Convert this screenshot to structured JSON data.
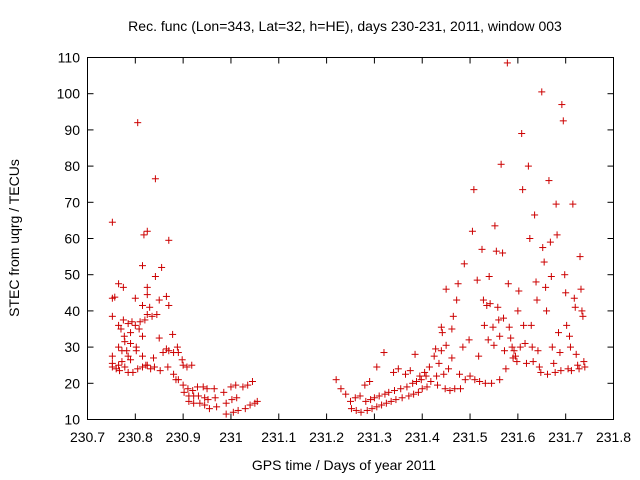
{
  "chart_data": {
    "type": "scatter",
    "title": "Rec. func (Lon=343, Lat=32, h=HE), days 230-231, 2011, window 003",
    "xlabel": "GPS time / Days of year 2011",
    "ylabel": "STEC from uqrg / TECUs",
    "xlim": [
      230.7,
      231.8
    ],
    "ylim": [
      10,
      110
    ],
    "xticks": [
      230.7,
      230.8,
      230.9,
      231.0,
      231.1,
      231.2,
      231.3,
      231.4,
      231.5,
      231.6,
      231.7,
      231.8
    ],
    "xtick_labels": [
      "230.7",
      "230.8",
      "230.9",
      "231",
      "231.1",
      "231.2",
      "231.3",
      "231.4",
      "231.5",
      "231.6",
      "231.7",
      "231.8"
    ],
    "yticks": [
      10,
      20,
      30,
      40,
      50,
      60,
      70,
      80,
      90,
      100,
      110
    ],
    "ytick_labels": [
      "10",
      "20",
      "30",
      "40",
      "50",
      "60",
      "70",
      "80",
      "90",
      "100",
      "110"
    ],
    "grid": false,
    "marker": "+",
    "color": "#cc0000",
    "series": [
      {
        "points": [
          [
            230.752,
            64.5
          ],
          [
            230.752,
            43.5
          ],
          [
            230.752,
            38.5
          ],
          [
            230.752,
            27.5
          ],
          [
            230.752,
            25.5
          ],
          [
            230.752,
            24.5
          ],
          [
            230.757,
            43.8
          ],
          [
            230.76,
            24.0
          ],
          [
            230.765,
            47.5
          ],
          [
            230.765,
            36.0
          ],
          [
            230.765,
            30.0
          ],
          [
            230.765,
            25.0
          ],
          [
            230.767,
            23.5
          ],
          [
            230.77,
            35.0
          ],
          [
            230.772,
            29.0
          ],
          [
            230.772,
            26.0
          ],
          [
            230.775,
            46.5
          ],
          [
            230.775,
            37.5
          ],
          [
            230.777,
            33.0
          ],
          [
            230.778,
            31.5
          ],
          [
            230.778,
            24.5
          ],
          [
            230.782,
            29.0
          ],
          [
            230.785,
            36.5
          ],
          [
            230.785,
            27.5
          ],
          [
            230.785,
            23.0
          ],
          [
            230.79,
            34.0
          ],
          [
            230.79,
            31.0
          ],
          [
            230.79,
            26.5
          ],
          [
            230.793,
            37.0
          ],
          [
            230.795,
            23.0
          ],
          [
            230.8,
            43.5
          ],
          [
            230.8,
            36.0
          ],
          [
            230.802,
            30.0
          ],
          [
            230.802,
            29.0
          ],
          [
            230.805,
            24.0
          ],
          [
            230.805,
            92.0
          ],
          [
            230.808,
            35.0
          ],
          [
            230.81,
            37.0
          ],
          [
            230.815,
            52.5
          ],
          [
            230.815,
            41.5
          ],
          [
            230.815,
            33.0
          ],
          [
            230.815,
            27.5
          ],
          [
            230.815,
            24.5
          ],
          [
            230.818,
            61.0
          ],
          [
            230.82,
            37.5
          ],
          [
            230.822,
            25.0
          ],
          [
            230.825,
            62.0
          ],
          [
            230.825,
            46.5
          ],
          [
            230.825,
            44.5
          ],
          [
            230.825,
            39.0
          ],
          [
            230.825,
            25.0
          ],
          [
            230.83,
            41.0
          ],
          [
            230.832,
            24.0
          ],
          [
            230.835,
            38.5
          ],
          [
            230.838,
            27.0
          ],
          [
            230.84,
            24.5
          ],
          [
            230.842,
            76.5
          ],
          [
            230.842,
            49.5
          ],
          [
            230.845,
            39.0
          ],
          [
            230.85,
            43.0
          ],
          [
            230.85,
            32.5
          ],
          [
            230.852,
            23.5
          ],
          [
            230.855,
            52.0
          ],
          [
            230.858,
            28.5
          ],
          [
            230.865,
            44.0
          ],
          [
            230.865,
            29.5
          ],
          [
            230.868,
            24.5
          ],
          [
            230.87,
            59.5
          ],
          [
            230.87,
            41.5
          ],
          [
            230.87,
            29.0
          ],
          [
            230.878,
            33.5
          ],
          [
            230.88,
            28.5
          ],
          [
            230.88,
            22.5
          ],
          [
            230.885,
            21.0
          ],
          [
            230.888,
            30.0
          ],
          [
            230.89,
            28.5
          ],
          [
            230.89,
            21.0
          ],
          [
            230.898,
            26.5
          ],
          [
            230.9,
            25.0
          ],
          [
            230.9,
            19.5
          ],
          [
            230.902,
            17.5
          ],
          [
            230.908,
            24.5
          ],
          [
            230.91,
            18.5
          ],
          [
            230.912,
            16.5
          ],
          [
            230.912,
            15.0
          ],
          [
            230.918,
            25.0
          ],
          [
            230.92,
            18.0
          ],
          [
            230.922,
            16.5
          ],
          [
            230.922,
            14.5
          ],
          [
            230.93,
            19.0
          ],
          [
            230.932,
            16.5
          ],
          [
            230.935,
            14.5
          ],
          [
            230.942,
            19.0
          ],
          [
            230.945,
            16.0
          ],
          [
            230.945,
            14.0
          ],
          [
            230.95,
            18.5
          ],
          [
            230.952,
            15.5
          ],
          [
            230.955,
            13.0
          ],
          [
            230.965,
            18.5
          ],
          [
            230.967,
            16.0
          ],
          [
            230.97,
            13.5
          ],
          [
            230.985,
            17.5
          ],
          [
            230.99,
            14.5
          ],
          [
            230.99,
            11.5
          ],
          [
            231.0,
            19.0
          ],
          [
            231.002,
            15.5
          ],
          [
            231.005,
            12.0
          ],
          [
            231.01,
            19.5
          ],
          [
            231.012,
            16.0
          ],
          [
            231.015,
            12.5
          ],
          [
            231.025,
            19.0
          ],
          [
            231.03,
            13.0
          ],
          [
            231.035,
            19.5
          ],
          [
            231.04,
            14.0
          ],
          [
            231.045,
            20.5
          ],
          [
            231.05,
            14.5
          ],
          [
            231.055,
            15.0
          ],
          [
            231.22,
            21.0
          ],
          [
            231.23,
            18.5
          ],
          [
            231.24,
            17.0
          ],
          [
            231.25,
            15.0
          ],
          [
            231.252,
            13.0
          ],
          [
            231.26,
            16.0
          ],
          [
            231.262,
            12.5
          ],
          [
            231.27,
            16.5
          ],
          [
            231.272,
            12.0
          ],
          [
            231.28,
            19.5
          ],
          [
            231.282,
            15.0
          ],
          [
            231.285,
            12.5
          ],
          [
            231.29,
            20.5
          ],
          [
            231.292,
            15.5
          ],
          [
            231.295,
            13.0
          ],
          [
            231.3,
            16.0
          ],
          [
            231.305,
            13.5
          ],
          [
            231.305,
            24.5
          ],
          [
            231.31,
            16.5
          ],
          [
            231.315,
            14.0
          ],
          [
            231.32,
            28.5
          ],
          [
            231.322,
            17.0
          ],
          [
            231.325,
            14.5
          ],
          [
            231.33,
            17.5
          ],
          [
            231.335,
            15.0
          ],
          [
            231.34,
            23.0
          ],
          [
            231.342,
            18.0
          ],
          [
            231.345,
            15.5
          ],
          [
            231.35,
            24.0
          ],
          [
            231.355,
            18.5
          ],
          [
            231.358,
            16.0
          ],
          [
            231.365,
            22.5
          ],
          [
            231.368,
            19.0
          ],
          [
            231.372,
            16.5
          ],
          [
            231.375,
            23.5
          ],
          [
            231.38,
            20.0
          ],
          [
            231.382,
            17.0
          ],
          [
            231.385,
            28.0
          ],
          [
            231.388,
            20.5
          ],
          [
            231.392,
            17.5
          ],
          [
            231.395,
            22.0
          ],
          [
            231.398,
            21.0
          ],
          [
            231.4,
            18.5
          ],
          [
            231.405,
            23.0
          ],
          [
            231.408,
            22.0
          ],
          [
            231.41,
            19.0
          ],
          [
            231.415,
            24.5
          ],
          [
            231.418,
            20.5
          ],
          [
            231.425,
            27.5
          ],
          [
            231.428,
            29.5
          ],
          [
            231.43,
            22.0
          ],
          [
            231.432,
            19.5
          ],
          [
            231.435,
            25.5
          ],
          [
            231.44,
            29.0
          ],
          [
            231.44,
            35.5
          ],
          [
            231.442,
            34.0
          ],
          [
            231.445,
            22.5
          ],
          [
            231.448,
            18.5
          ],
          [
            231.45,
            46.0
          ],
          [
            231.45,
            30.5
          ],
          [
            231.455,
            24.0
          ],
          [
            231.458,
            18.0
          ],
          [
            231.462,
            35.0
          ],
          [
            231.462,
            27.0
          ],
          [
            231.465,
            38.5
          ],
          [
            231.468,
            18.5
          ],
          [
            231.472,
            43.0
          ],
          [
            231.475,
            47.5
          ],
          [
            231.478,
            22.5
          ],
          [
            231.48,
            18.5
          ],
          [
            231.485,
            30.0
          ],
          [
            231.488,
            53.0
          ],
          [
            231.49,
            21.0
          ],
          [
            231.498,
            32.0
          ],
          [
            231.5,
            22.0
          ],
          [
            231.505,
            62.0
          ],
          [
            231.508,
            73.5
          ],
          [
            231.51,
            21.0
          ],
          [
            231.515,
            48.5
          ],
          [
            231.518,
            27.5
          ],
          [
            231.52,
            20.5
          ],
          [
            231.525,
            57.0
          ],
          [
            231.528,
            43.0
          ],
          [
            231.53,
            36.0
          ],
          [
            231.532,
            20.0
          ],
          [
            231.535,
            41.5
          ],
          [
            231.538,
            32.0
          ],
          [
            231.54,
            49.5
          ],
          [
            231.542,
            42.0
          ],
          [
            231.545,
            20.0
          ],
          [
            231.548,
            35.5
          ],
          [
            231.55,
            30.5
          ],
          [
            231.552,
            63.5
          ],
          [
            231.555,
            56.5
          ],
          [
            231.558,
            41.0
          ],
          [
            231.56,
            37.5
          ],
          [
            231.562,
            33.0
          ],
          [
            231.562,
            21.0
          ],
          [
            231.565,
            80.5
          ],
          [
            231.568,
            56.0
          ],
          [
            231.57,
            38.0
          ],
          [
            231.572,
            29.0
          ],
          [
            231.575,
            24.0
          ],
          [
            231.578,
            108.5
          ],
          [
            231.58,
            47.5
          ],
          [
            231.582,
            35.5
          ],
          [
            231.585,
            32.5
          ],
          [
            231.588,
            30.0
          ],
          [
            231.59,
            27.0
          ],
          [
            231.592,
            29.0
          ],
          [
            231.595,
            27.5
          ],
          [
            231.598,
            26.0
          ],
          [
            231.6,
            40.0
          ],
          [
            231.602,
            45.5
          ],
          [
            231.605,
            30.0
          ],
          [
            231.608,
            89.0
          ],
          [
            231.61,
            73.5
          ],
          [
            231.612,
            36.0
          ],
          [
            231.615,
            31.0
          ],
          [
            231.618,
            25.5
          ],
          [
            231.622,
            80.0
          ],
          [
            231.625,
            60.0
          ],
          [
            231.628,
            36.0
          ],
          [
            231.63,
            30.0
          ],
          [
            231.632,
            26.0
          ],
          [
            231.635,
            66.5
          ],
          [
            231.638,
            48.0
          ],
          [
            231.64,
            43.0
          ],
          [
            231.642,
            29.0
          ],
          [
            231.645,
            24.5
          ],
          [
            231.648,
            23.0
          ],
          [
            231.65,
            100.5
          ],
          [
            231.652,
            57.5
          ],
          [
            231.655,
            53.5
          ],
          [
            231.658,
            46.5
          ],
          [
            231.66,
            40.0
          ],
          [
            231.662,
            22.5
          ],
          [
            231.665,
            76.0
          ],
          [
            231.668,
            59.0
          ],
          [
            231.67,
            49.5
          ],
          [
            231.672,
            30.0
          ],
          [
            231.675,
            25.5
          ],
          [
            231.678,
            23.0
          ],
          [
            231.68,
            69.5
          ],
          [
            231.682,
            61.0
          ],
          [
            231.685,
            34.0
          ],
          [
            231.688,
            28.5
          ],
          [
            231.69,
            23.5
          ],
          [
            231.692,
            97.0
          ],
          [
            231.695,
            92.5
          ],
          [
            231.698,
            50.0
          ],
          [
            231.7,
            45.0
          ],
          [
            231.702,
            36.0
          ],
          [
            231.705,
            24.0
          ],
          [
            231.708,
            33.0
          ],
          [
            231.71,
            30.0
          ],
          [
            231.712,
            23.5
          ],
          [
            231.715,
            69.5
          ],
          [
            231.718,
            43.5
          ],
          [
            231.72,
            41.0
          ],
          [
            231.722,
            28.0
          ],
          [
            231.725,
            25.0
          ],
          [
            231.728,
            24.0
          ],
          [
            231.73,
            55.0
          ],
          [
            231.732,
            46.0
          ],
          [
            231.734,
            40.0
          ],
          [
            231.736,
            38.5
          ],
          [
            231.738,
            26.0
          ],
          [
            231.74,
            24.5
          ]
        ]
      }
    ]
  }
}
